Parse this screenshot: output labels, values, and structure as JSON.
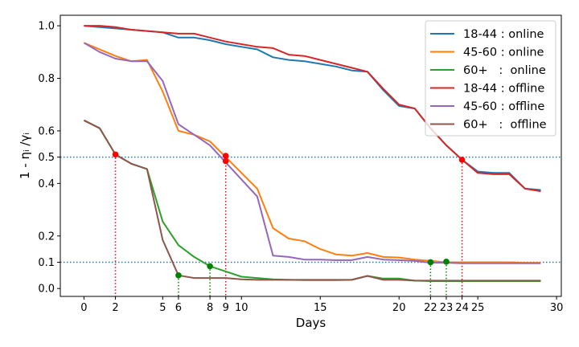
{
  "chart_data": {
    "type": "line",
    "xlabel": "Days",
    "ylabel": "1 - ηᵢ /γᵢ",
    "xlim": [
      -1.5,
      30.3
    ],
    "ylim": [
      -0.03,
      1.04
    ],
    "xticks": [
      0,
      2,
      5,
      6,
      8,
      9,
      10,
      15,
      20,
      22,
      23,
      24,
      25,
      30
    ],
    "yticks": [
      0.0,
      0.1,
      0.2,
      0.4,
      0.5,
      0.6,
      0.8,
      1.0
    ],
    "ytick_labels": [
      "0.0",
      "0.1",
      "0.2",
      "0.4",
      "0.5",
      "0.6",
      "0.8",
      "1.0"
    ],
    "grid": false,
    "legend_position": "top-right",
    "reference_lines": [
      {
        "y": 0.5,
        "color": "#1f77b4"
      },
      {
        "y": 0.1,
        "color": "#1f77b4"
      }
    ],
    "series": [
      {
        "name": "18-44 : online",
        "color": "#1f77b4",
        "x": [
          0,
          1,
          2,
          3,
          4,
          5,
          6,
          7,
          8,
          9,
          10,
          11,
          12,
          13,
          14,
          15,
          16,
          17,
          18,
          19,
          20,
          21,
          22,
          23,
          24,
          25,
          26,
          27,
          28,
          29
        ],
        "y": [
          1.0,
          0.995,
          0.99,
          0.985,
          0.98,
          0.975,
          0.955,
          0.955,
          0.945,
          0.93,
          0.92,
          0.91,
          0.88,
          0.87,
          0.865,
          0.855,
          0.845,
          0.83,
          0.825,
          0.755,
          0.695,
          0.685,
          0.61,
          0.545,
          0.49,
          0.445,
          0.44,
          0.44,
          0.38,
          0.375
        ]
      },
      {
        "name": "45-60 : online",
        "color": "#ff7f0e",
        "x": [
          0,
          1,
          2,
          3,
          4,
          5,
          6,
          7,
          8,
          9,
          10,
          11,
          12,
          13,
          14,
          15,
          16,
          17,
          18,
          19,
          20,
          21,
          22,
          23,
          24,
          25,
          26,
          27,
          28,
          29
        ],
        "y": [
          0.935,
          0.91,
          0.885,
          0.865,
          0.87,
          0.75,
          0.6,
          0.585,
          0.56,
          0.5,
          0.44,
          0.38,
          0.23,
          0.19,
          0.18,
          0.15,
          0.13,
          0.125,
          0.135,
          0.12,
          0.118,
          0.11,
          0.105,
          0.1,
          0.1,
          0.1,
          0.1,
          0.1,
          0.098,
          0.098
        ]
      },
      {
        "name": "60+   :  online",
        "color": "#2ca02c",
        "x": [
          0,
          1,
          2,
          3,
          4,
          5,
          6,
          7,
          8,
          9,
          10,
          11,
          12,
          13,
          14,
          15,
          16,
          17,
          18,
          19,
          20,
          21,
          22,
          23,
          24,
          25,
          26,
          27,
          28,
          29
        ],
        "y": [
          0.64,
          0.61,
          0.51,
          0.475,
          0.455,
          0.255,
          0.165,
          0.12,
          0.085,
          0.065,
          0.045,
          0.04,
          0.035,
          0.033,
          0.032,
          0.032,
          0.032,
          0.033,
          0.048,
          0.038,
          0.038,
          0.03,
          0.028,
          0.028,
          0.028,
          0.028,
          0.028,
          0.028,
          0.028,
          0.028
        ]
      },
      {
        "name": "18-44 : offline",
        "color": "#d62728",
        "x": [
          0,
          1,
          2,
          3,
          4,
          5,
          6,
          7,
          8,
          9,
          10,
          11,
          12,
          13,
          14,
          15,
          16,
          17,
          18,
          19,
          20,
          21,
          22,
          23,
          24,
          25,
          26,
          27,
          28,
          29
        ],
        "y": [
          1.0,
          1.0,
          0.995,
          0.985,
          0.98,
          0.975,
          0.97,
          0.97,
          0.955,
          0.94,
          0.93,
          0.92,
          0.915,
          0.89,
          0.885,
          0.87,
          0.855,
          0.84,
          0.825,
          0.76,
          0.7,
          0.685,
          0.61,
          0.545,
          0.49,
          0.44,
          0.435,
          0.435,
          0.38,
          0.37
        ]
      },
      {
        "name": "45-60 : offline",
        "color": "#9467bd",
        "x": [
          0,
          1,
          2,
          3,
          4,
          5,
          6,
          7,
          8,
          9,
          10,
          11,
          12,
          13,
          14,
          15,
          16,
          17,
          18,
          19,
          20,
          21,
          22,
          23,
          24,
          25,
          26,
          27,
          28,
          29
        ],
        "y": [
          0.935,
          0.9,
          0.875,
          0.865,
          0.865,
          0.79,
          0.625,
          0.585,
          0.545,
          0.48,
          0.415,
          0.35,
          0.125,
          0.12,
          0.11,
          0.11,
          0.108,
          0.108,
          0.12,
          0.11,
          0.108,
          0.105,
          0.098,
          0.098,
          0.096,
          0.096,
          0.096,
          0.096,
          0.096,
          0.096
        ]
      },
      {
        "name": "60+   :  offline",
        "color": "#8c564b",
        "x": [
          0,
          1,
          2,
          3,
          4,
          5,
          6,
          7,
          8,
          9,
          10,
          11,
          12,
          13,
          14,
          15,
          16,
          17,
          18,
          19,
          20,
          21,
          22,
          23,
          24,
          25,
          26,
          27,
          28,
          29
        ],
        "y": [
          0.64,
          0.61,
          0.51,
          0.475,
          0.455,
          0.185,
          0.05,
          0.04,
          0.04,
          0.04,
          0.035,
          0.033,
          0.033,
          0.033,
          0.033,
          0.033,
          0.033,
          0.033,
          0.048,
          0.033,
          0.033,
          0.03,
          0.03,
          0.03,
          0.03,
          0.03,
          0.03,
          0.03,
          0.03,
          0.03
        ]
      }
    ],
    "markers": [
      {
        "x": 2,
        "y": 0.51,
        "color": "#ff0000"
      },
      {
        "x": 9,
        "y": 0.505,
        "color": "#ff0000"
      },
      {
        "x": 9,
        "y": 0.485,
        "color": "#ff0000"
      },
      {
        "x": 24,
        "y": 0.49,
        "color": "#ff0000"
      },
      {
        "x": 6,
        "y": 0.05,
        "color": "#008000"
      },
      {
        "x": 8,
        "y": 0.085,
        "color": "#008000"
      },
      {
        "x": 22,
        "y": 0.1,
        "color": "#008000"
      },
      {
        "x": 23,
        "y": 0.102,
        "color": "#008000"
      }
    ],
    "drop_lines": [
      {
        "x": 2,
        "y": 0.51,
        "color": "#ff0000"
      },
      {
        "x": 9,
        "y": 0.505,
        "color": "#ff0000"
      },
      {
        "x": 24,
        "y": 0.49,
        "color": "#ff0000"
      },
      {
        "x": 6,
        "y": 0.05,
        "color": "#008000"
      },
      {
        "x": 8,
        "y": 0.085,
        "color": "#008000"
      },
      {
        "x": 22,
        "y": 0.1,
        "color": "#008000"
      },
      {
        "x": 23,
        "y": 0.102,
        "color": "#008000"
      }
    ]
  }
}
